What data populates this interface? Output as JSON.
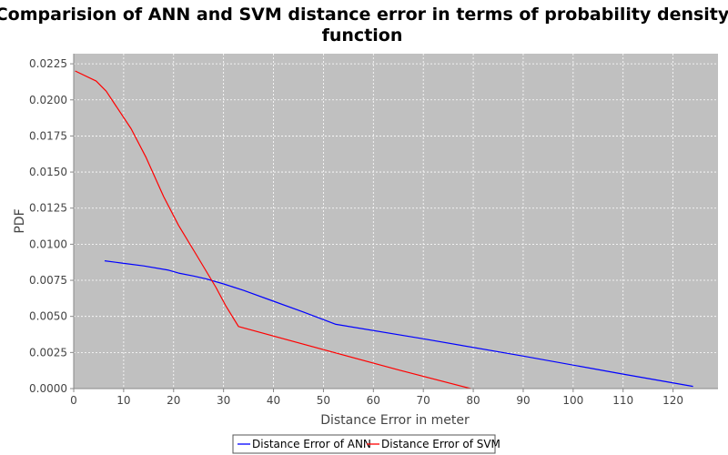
{
  "chart_data": {
    "type": "line",
    "title_lines": [
      "Comparision of ANN and SVM distance error in terms of probability density",
      "function"
    ],
    "xlabel": "Distance Error in meter",
    "ylabel": "PDF",
    "xlim": [
      0,
      129
    ],
    "ylim": [
      0,
      0.0232
    ],
    "x_ticks": [
      0,
      10,
      20,
      30,
      40,
      50,
      60,
      70,
      80,
      90,
      100,
      110,
      120
    ],
    "y_ticks": [
      0.0,
      0.0025,
      0.005,
      0.0075,
      0.01,
      0.0125,
      0.015,
      0.0175,
      0.02,
      0.0225
    ],
    "x_tick_labels": [
      "0",
      "10",
      "20",
      "30",
      "40",
      "50",
      "60",
      "70",
      "80",
      "90",
      "100",
      "110",
      "120"
    ],
    "y_tick_labels": [
      "0.0000",
      "0.0025",
      "0.0050",
      "0.0075",
      "0.0100",
      "0.0125",
      "0.0150",
      "0.0175",
      "0.0200",
      "0.0225"
    ],
    "grid": true,
    "legend_position": "bottom",
    "background_color": "#c0c0c0",
    "grid_color": "#ffffff",
    "series": [
      {
        "name": "Distance Error of ANN",
        "color": "#0000ff",
        "points": [
          [
            6.2,
            0.00885
          ],
          [
            9.5,
            0.0087
          ],
          [
            14.0,
            0.0085
          ],
          [
            19.0,
            0.0082
          ],
          [
            21.0,
            0.008
          ],
          [
            24.0,
            0.0078
          ],
          [
            26.5,
            0.0076
          ],
          [
            30.0,
            0.00725
          ],
          [
            34.0,
            0.0068
          ],
          [
            40.0,
            0.00605
          ],
          [
            46.0,
            0.0053
          ],
          [
            52.5,
            0.00445
          ],
          [
            70.0,
            0.00345
          ],
          [
            90.0,
            0.00225
          ],
          [
            110.0,
            0.001
          ],
          [
            124.0,
            0.00015
          ]
        ]
      },
      {
        "name": "Distance Error of SVM",
        "color": "#ff0000",
        "points": [
          [
            0.3,
            0.022
          ],
          [
            4.5,
            0.0213
          ],
          [
            6.5,
            0.0206
          ],
          [
            11.5,
            0.018
          ],
          [
            14.5,
            0.016
          ],
          [
            18.0,
            0.0133
          ],
          [
            21.0,
            0.0113
          ],
          [
            24.5,
            0.0093
          ],
          [
            28.5,
            0.007
          ],
          [
            30.5,
            0.0057
          ],
          [
            33.0,
            0.0043
          ],
          [
            50.0,
            0.0027
          ],
          [
            65.0,
            0.0013
          ],
          [
            79.5,
            0.0
          ]
        ]
      }
    ]
  }
}
